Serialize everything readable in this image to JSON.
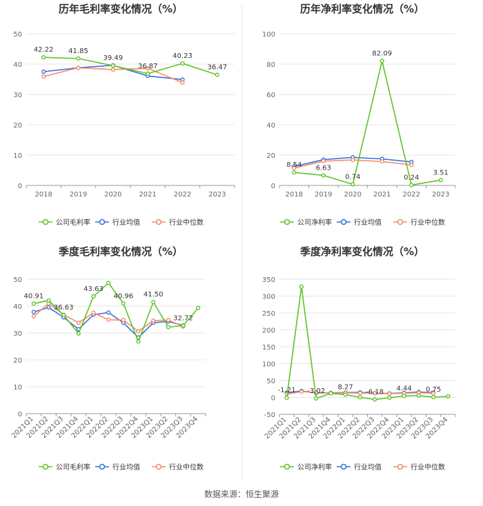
{
  "source": "数据来源：恒生聚源",
  "legend_labels": [
    "行业均值",
    "行业中位数"
  ],
  "colors": {
    "company": "#5cc423",
    "avg": "#3b6fdc",
    "median": "#f58a63",
    "grid": "#e6e6e6",
    "axis": "#666666"
  },
  "chart_data": [
    {
      "type": "line",
      "title": "历年毛利率变化情况（%）",
      "categories": [
        "2018",
        "2019",
        "2020",
        "2021",
        "2022",
        "2023"
      ],
      "ylim": [
        0,
        50
      ],
      "yticks": [
        0,
        10,
        20,
        30,
        40,
        50
      ],
      "series": [
        {
          "name": "公司毛利率",
          "values": [
            42.22,
            41.85,
            39.49,
            36.87,
            40.23,
            36.47
          ],
          "labels": [
            "42.22",
            "41.85",
            "39.49",
            "36.87",
            "40.23",
            "36.47"
          ]
        },
        {
          "name": "行业均值",
          "values": [
            37.5,
            38.8,
            39.6,
            36.1,
            34.9,
            null
          ]
        },
        {
          "name": "行业中位数",
          "values": [
            35.9,
            38.8,
            38.2,
            38.6,
            33.9,
            null
          ]
        }
      ]
    },
    {
      "type": "line",
      "title": "历年净利率变化情况（%）",
      "categories": [
        "2018",
        "2019",
        "2020",
        "2021",
        "2022",
        "2023"
      ],
      "ylim": [
        0,
        100
      ],
      "yticks": [
        0,
        20,
        40,
        60,
        80,
        100
      ],
      "series": [
        {
          "name": "公司净利率",
          "values": [
            8.54,
            6.63,
            0.74,
            82.09,
            0.24,
            3.51
          ],
          "labels": [
            "8.54",
            "6.63",
            "0.74",
            "82.09",
            "0.24",
            "3.51"
          ]
        },
        {
          "name": "行业均值",
          "values": [
            12.5,
            17.0,
            18.5,
            17.5,
            15.5,
            null
          ]
        },
        {
          "name": "行业中位数",
          "values": [
            11.5,
            16.0,
            16.8,
            15.8,
            13.5,
            null
          ]
        }
      ]
    },
    {
      "type": "line",
      "title": "季度毛利率变化情况（%）",
      "categories": [
        "2021Q1",
        "2021Q2",
        "2021Q3",
        "2021Q4",
        "2022Q1",
        "2022Q2",
        "2022Q3",
        "2022Q4",
        "2023Q1",
        "2023Q2",
        "2023Q3",
        "2023Q4"
      ],
      "ylim": [
        0,
        50
      ],
      "yticks": [
        0,
        10,
        20,
        30,
        40,
        50
      ],
      "series": [
        {
          "name": "公司毛利率",
          "values": [
            40.91,
            42.1,
            36.63,
            29.8,
            43.63,
            48.6,
            40.96,
            26.8,
            41.5,
            32.2,
            32.72,
            39.3
          ],
          "labels": [
            "40.91",
            "",
            "36.63",
            "",
            "43.63",
            "",
            "40.96",
            "",
            "41.50",
            "",
            "32.72",
            ""
          ]
        },
        {
          "name": "行业均值",
          "values": [
            37.8,
            39.5,
            35.8,
            31.4,
            36.8,
            37.6,
            33.8,
            28.3,
            33.8,
            34.3,
            32.8,
            null
          ]
        },
        {
          "name": "行业中位数",
          "values": [
            36.2,
            41.0,
            36.8,
            33.8,
            37.5,
            34.9,
            34.8,
            30.6,
            34.6,
            34.8,
            32.4,
            null
          ]
        }
      ]
    },
    {
      "type": "line",
      "title": "季度净利率变化情况（%）",
      "categories": [
        "2021Q1",
        "2021Q2",
        "2021Q3",
        "2021Q4",
        "2022Q1",
        "2022Q2",
        "2022Q3",
        "2022Q4",
        "2023Q1",
        "2023Q2",
        "2023Q3",
        "2023Q4"
      ],
      "ylim": [
        -50,
        350
      ],
      "yticks": [
        -50,
        0,
        50,
        100,
        150,
        200,
        250,
        300,
        350
      ],
      "series": [
        {
          "name": "公司净利率",
          "values": [
            -1.21,
            328.0,
            -3.02,
            12.0,
            8.27,
            0.5,
            -6.18,
            -1.0,
            4.44,
            5.5,
            0.75,
            3.0
          ],
          "labels": [
            "-1.21",
            "",
            "-3.02",
            "",
            "8.27",
            "",
            "-6.18",
            "",
            "4.44",
            "",
            "0.75",
            ""
          ]
        },
        {
          "name": "行业均值",
          "values": [
            14.0,
            19.0,
            13.0,
            13.5,
            14.5,
            15.0,
            12.5,
            12.0,
            13.5,
            16.0,
            14.0,
            null
          ]
        },
        {
          "name": "行业中位数",
          "values": [
            10.0,
            17.0,
            15.0,
            13.0,
            13.5,
            13.0,
            12.0,
            11.0,
            12.0,
            14.0,
            12.0,
            null
          ]
        }
      ]
    }
  ]
}
